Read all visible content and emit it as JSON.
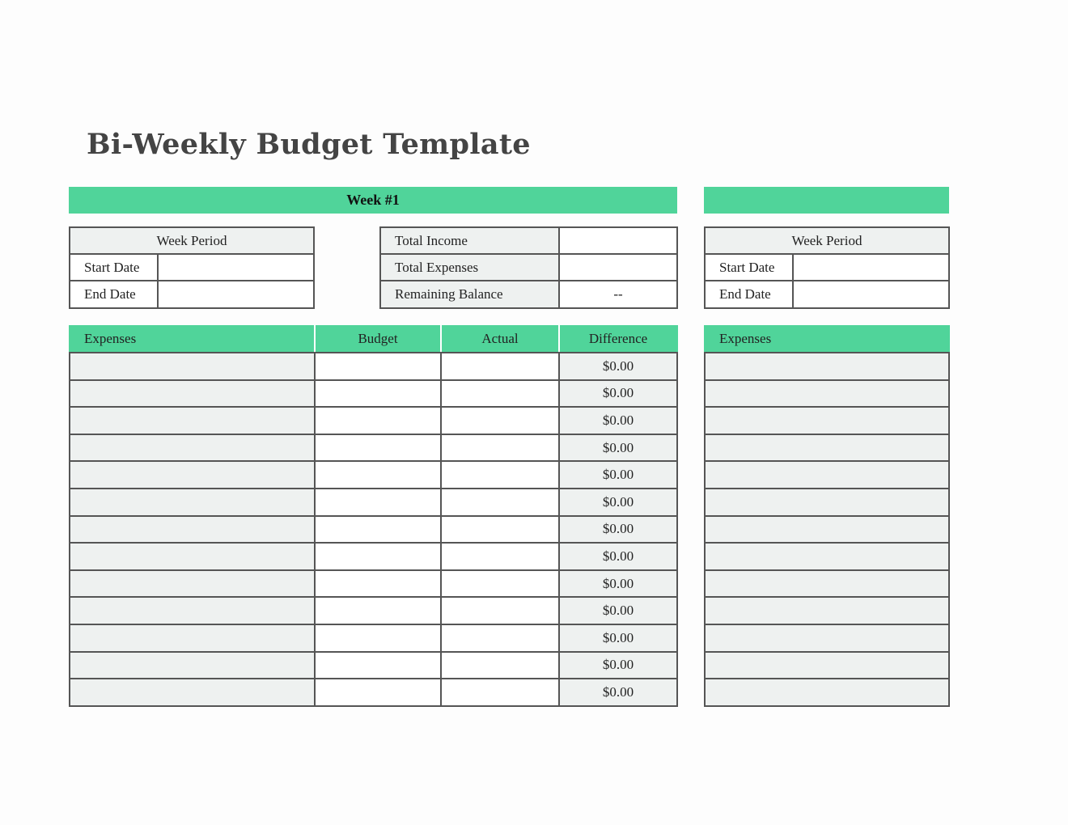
{
  "title": "Bi-Weekly Budget Template",
  "week1": {
    "band_label": "Week #1",
    "period": {
      "header": "Week Period",
      "start_label": "Start Date",
      "start_value": "",
      "end_label": "End Date",
      "end_value": ""
    },
    "summary": [
      {
        "label": "Total Income",
        "value": ""
      },
      {
        "label": "Total Expenses",
        "value": ""
      },
      {
        "label": "Remaining Balance",
        "value": "--"
      }
    ],
    "columns": [
      "Expenses",
      "Budget",
      "Actual",
      "Difference"
    ],
    "differences": [
      "$0.00",
      "$0.00",
      "$0.00",
      "$0.00",
      "$0.00",
      "$0.00",
      "$0.00",
      "$0.00",
      "$0.00",
      "$0.00",
      "$0.00",
      "$0.00",
      "$0.00"
    ]
  },
  "week2": {
    "band_label": "",
    "period": {
      "header": "Week Period",
      "start_label": "Start Date",
      "start_value": "",
      "end_label": "End Date",
      "end_value": ""
    },
    "columns": [
      "Expenses"
    ]
  },
  "colors": {
    "accent": "#50d49a",
    "fill": "#eef1f0",
    "border": "#555555"
  }
}
